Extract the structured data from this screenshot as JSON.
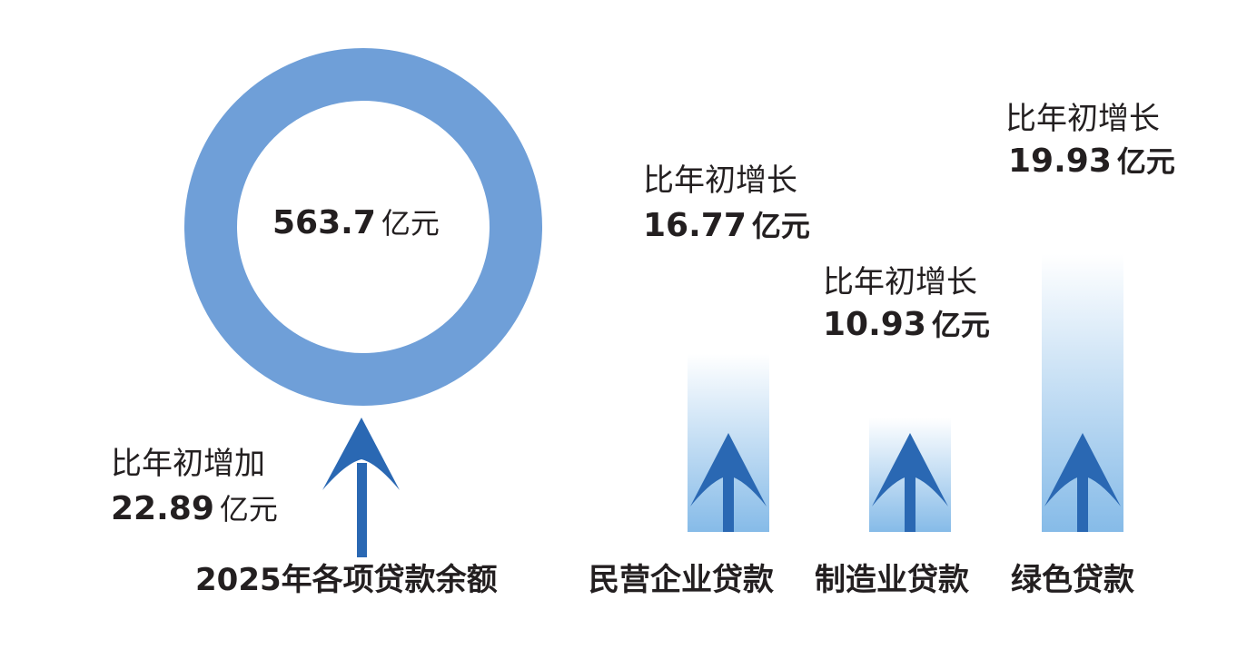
{
  "colors": {
    "ring": "#6f9fd8",
    "arrow": "#2a68b3",
    "bar_bottom": "#86bbe8",
    "bar_top": "#ffffff",
    "text": "#231f20"
  },
  "chart_data": {
    "type": "bar",
    "total": {
      "category": "2025年各项贷款余额",
      "value": 563.7,
      "unit": "亿元",
      "change_label": "比年初增加",
      "change": 22.89,
      "change_unit": "亿元"
    },
    "categories": [
      "民营企业贷款",
      "制造业贷款",
      "绿色贷款"
    ],
    "change_label": "比年初增长",
    "values": [
      16.77,
      10.93,
      19.93
    ],
    "unit": "亿元"
  },
  "text": {
    "total_value": "563.7",
    "unit": "亿元",
    "total_change_label": "比年初增加",
    "total_change": "22.89",
    "total_category": "2025年各项贷款余额",
    "bars": [
      {
        "label": "比年初增长",
        "value": "16.77",
        "category": "民营企业贷款"
      },
      {
        "label": "比年初增长",
        "value": "10.93",
        "category": "制造业贷款"
      },
      {
        "label": "比年初增长",
        "value": "19.93",
        "category": "绿色贷款"
      }
    ]
  }
}
